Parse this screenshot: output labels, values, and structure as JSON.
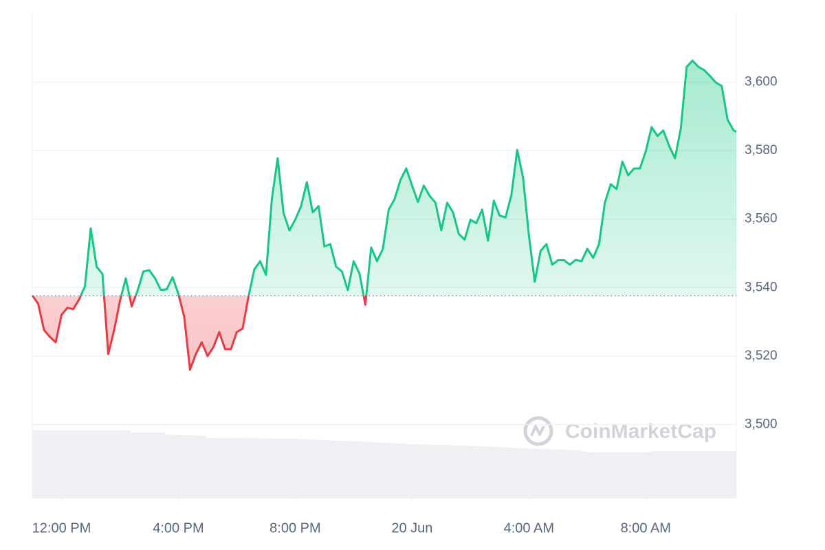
{
  "chart_data": {
    "type": "line",
    "watermark": "CoinMarketCap",
    "x": [
      -1.0,
      -0.8,
      -0.6,
      -0.4,
      -0.2,
      0.0,
      0.2,
      0.4,
      0.6,
      0.8,
      1.0,
      1.2,
      1.4,
      1.6,
      1.8,
      2.0,
      2.2,
      2.4,
      2.6,
      2.8,
      3.0,
      3.2,
      3.4,
      3.6,
      3.8,
      4.0,
      4.2,
      4.4,
      4.6,
      4.8,
      5.0,
      5.2,
      5.4,
      5.6,
      5.8,
      6.0,
      6.2,
      6.4,
      6.6,
      6.8,
      7.0,
      7.2,
      7.4,
      7.6,
      7.8,
      8.0,
      8.2,
      8.4,
      8.6,
      8.8,
      9.0,
      9.2,
      9.4,
      9.6,
      9.8,
      10.0,
      10.2,
      10.4,
      10.6,
      10.8,
      11.0,
      11.2,
      11.4,
      11.6,
      11.8,
      12.0,
      12.2,
      12.4,
      12.6,
      12.8,
      13.0,
      13.2,
      13.4,
      13.6,
      13.8,
      14.0,
      14.2,
      14.4,
      14.6,
      14.8,
      15.0,
      15.2,
      15.4,
      15.6,
      15.8,
      16.0,
      16.2,
      16.4,
      16.6,
      16.8,
      17.0,
      17.2,
      17.4,
      17.6,
      17.8,
      18.0,
      18.2,
      18.4,
      18.6,
      18.8,
      19.0,
      19.2,
      19.4,
      19.6,
      19.8,
      20.0,
      20.2,
      20.4,
      20.6,
      20.8,
      21.0,
      21.2,
      21.4,
      21.6,
      21.8,
      22.0,
      22.2,
      22.4,
      22.6,
      22.8,
      23.0,
      23.1
    ],
    "values": [
      3537.7,
      3535.3,
      3527.6,
      3525.6,
      3524,
      3532.0,
      3534.1,
      3533.7,
      3536.5,
      3540.3,
      3557.3,
      3546.1,
      3544,
      3520.6,
      3527.6,
      3536.1,
      3542.7,
      3534.5,
      3539,
      3544.7,
      3545.1,
      3542.7,
      3539.3,
      3539.5,
      3543,
      3538.2,
      3531.5,
      3516,
      3520.6,
      3524.0,
      3520.0,
      3522.6,
      3527,
      3522,
      3522,
      3527,
      3528.0,
      3537.3,
      3545.3,
      3547.7,
      3543.7,
      3565.8,
      3577.8,
      3561.8,
      3556.7,
      3559.8,
      3563.8,
      3570.8,
      3562,
      3563.8,
      3552,
      3552.7,
      3546.1,
      3544.7,
      3539.3,
      3547.7,
      3544.1,
      3535,
      3551.7,
      3547.7,
      3551.3,
      3562.8,
      3565.8,
      3571.4,
      3574.8,
      3569.8,
      3565,
      3569.8,
      3566.8,
      3564.8,
      3556.7,
      3564.8,
      3562,
      3555.7,
      3554,
      3559.8,
      3558.8,
      3562.8,
      3553.7,
      3565.4,
      3561,
      3560.5,
      3567,
      3580.2,
      3572.2,
      3555.3,
      3541.7,
      3550.7,
      3552.7,
      3546.7,
      3548,
      3548,
      3546.7,
      3548.1,
      3547.7,
      3551.3,
      3548.7,
      3552.7,
      3564.8,
      3570.2,
      3568.8,
      3576.8,
      3572.8,
      3574.8,
      3574.8,
      3579.8,
      3586.9,
      3584.3,
      3585.9,
      3581.4,
      3577.8,
      3586.5,
      3604.5,
      3606.3,
      3604.5,
      3603.5,
      3601.8,
      3599.9,
      3598.9,
      3589,
      3586,
      3585.5
    ],
    "baseline": 3537.6,
    "up_color": "#16c784",
    "down_color": "#ea3943",
    "xlim": [
      -1.0,
      23.1
    ],
    "xticks": [
      {
        "value": 0,
        "label": "12:00 PM"
      },
      {
        "value": 4,
        "label": "4:00 PM"
      },
      {
        "value": 8,
        "label": "8:00 PM"
      },
      {
        "value": 12,
        "label": "20 Jun"
      },
      {
        "value": 16,
        "label": "4:00 AM"
      },
      {
        "value": 20,
        "label": "8:00 AM"
      }
    ],
    "ylim": [
      3480,
      3620
    ],
    "yticks": [
      {
        "value": 3500,
        "label": "3,500"
      },
      {
        "value": 3520,
        "label": "3,520"
      },
      {
        "value": 3540,
        "label": "3,540"
      },
      {
        "value": 3560,
        "label": "3,560"
      },
      {
        "value": 3580,
        "label": "3,580"
      },
      {
        "value": 3600,
        "label": "3,600"
      }
    ],
    "grid": true
  }
}
